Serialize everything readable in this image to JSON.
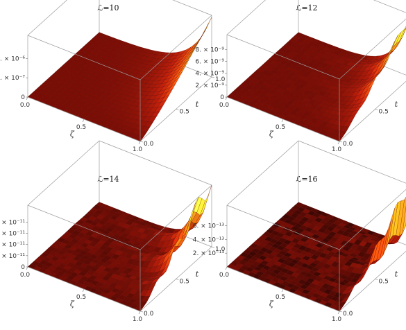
{
  "chart_data": [
    {
      "type": "surface3d",
      "title": "ℒ=10",
      "xlabel": "ζ",
      "ylabel": "t",
      "x_ticks": [
        "0.0",
        "0.5",
        "1.0"
      ],
      "y_ticks": [
        "0.0",
        "0.5",
        "1.0"
      ],
      "z_ticks": [
        "0",
        "5. × 10⁻⁷",
        "1. × 10⁻⁶"
      ],
      "z_tick_values": [
        0,
        5e-07,
        1e-06
      ],
      "zlim": [
        0,
        1.6e-06
      ],
      "surface": {
        "peak": 1.55e-06,
        "decay": 5.5,
        "ridges": 0.0,
        "noise": 0.0
      }
    },
    {
      "type": "surface3d",
      "title": "ℒ=12",
      "xlabel": "ζ",
      "ylabel": "t",
      "x_ticks": [
        "0.0",
        "0.5",
        "1.0"
      ],
      "y_ticks": [
        "0.0",
        "0.5",
        "1.0"
      ],
      "z_ticks": [
        "0",
        "2. × 10⁻⁹",
        "4. × 10⁻⁹",
        "6. × 10⁻⁹",
        "8. × 10⁻⁹"
      ],
      "z_tick_values": [
        0,
        2e-09,
        4e-09,
        6e-09,
        8e-09
      ],
      "zlim": [
        0,
        1.05e-08
      ],
      "surface": {
        "peak": 1e-08,
        "decay": 7.0,
        "ridges": 0.25,
        "noise": 0.05
      }
    },
    {
      "type": "surface3d",
      "title": "ℒ=14",
      "xlabel": "ζ",
      "ylabel": "t",
      "x_ticks": [
        "0.0",
        "0.5",
        "1.0"
      ],
      "y_ticks": [
        "0.0",
        "0.5",
        "1.0"
      ],
      "z_ticks": [
        "0",
        "1. × 10⁻¹¹",
        "2. × 10⁻¹¹",
        "3. × 10⁻¹¹",
        "4. × 10⁻¹¹"
      ],
      "z_tick_values": [
        0,
        1e-11,
        2e-11,
        3e-11,
        4e-11
      ],
      "zlim": [
        0,
        5.5e-11
      ],
      "surface": {
        "peak": 5e-11,
        "decay": 9.0,
        "ridges": 0.7,
        "noise": 0.18
      }
    },
    {
      "type": "surface3d",
      "title": "ℒ=16",
      "xlabel": "ζ",
      "ylabel": "t",
      "x_ticks": [
        "0.0",
        "0.5",
        "1.0"
      ],
      "y_ticks": [
        "0.0",
        "0.5",
        "1.0"
      ],
      "z_ticks": [
        "2. × 10⁻¹³",
        "4. × 10⁻¹³",
        "6. × 10⁻¹³"
      ],
      "z_tick_values": [
        2e-13,
        4e-13,
        6e-13
      ],
      "zlim": [
        0,
        9e-13
      ],
      "surface": {
        "peak": 8.5e-13,
        "decay": 30.0,
        "ridges": 0.4,
        "noise": 0.35
      }
    }
  ]
}
